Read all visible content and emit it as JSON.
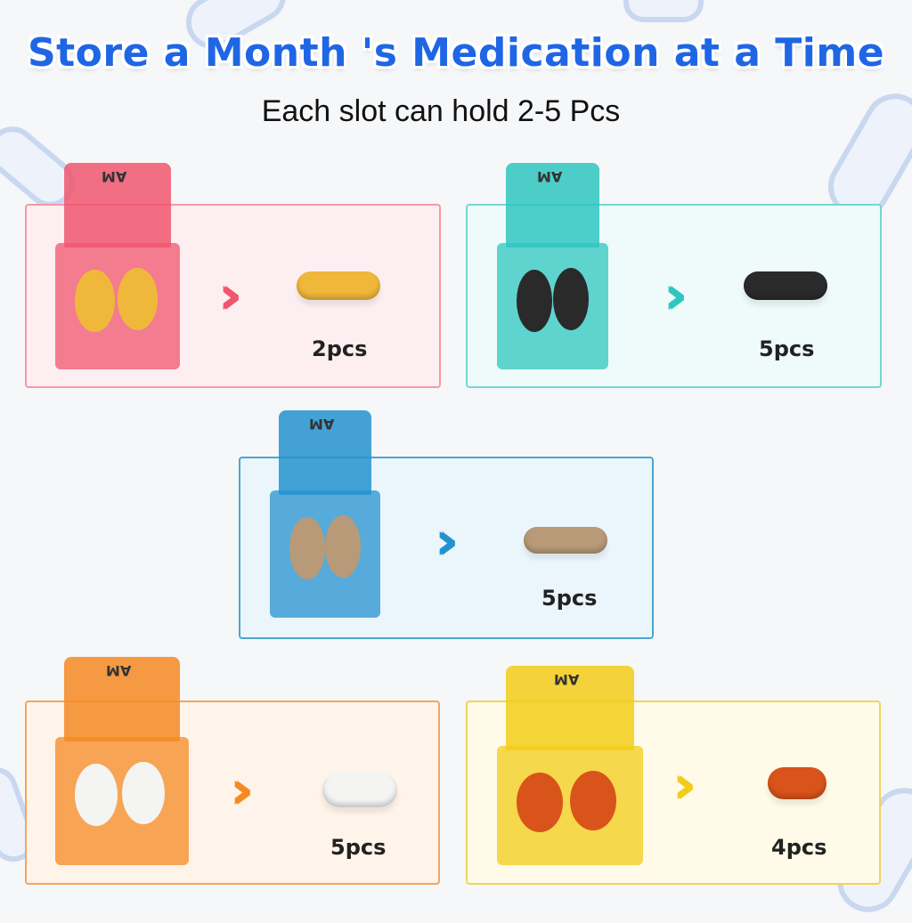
{
  "title": "Store a Month 's Medication at a Time",
  "subtitle": "Each slot can hold 2-5 Pcs",
  "slots": [
    {
      "color": "pink",
      "accent": "#f0566e",
      "border": "#f29aa6",
      "bg": "#fdeff1",
      "lid_label": "AM",
      "pill_type": "softgel",
      "pill_color": "#f0b83a",
      "count": "2pcs"
    },
    {
      "color": "teal",
      "accent": "#2fc6bf",
      "border": "#72d8d3",
      "bg": "#effafa",
      "lid_label": "AM",
      "pill_type": "capsule",
      "pill_color": "#2a2a2a",
      "count": "5pcs"
    },
    {
      "color": "blue",
      "accent": "#2592cf",
      "border": "#4aa6cf",
      "bg": "#eaf6fb",
      "lid_label": "AM",
      "pill_type": "capsule",
      "pill_color": "#b89a78",
      "count": "5pcs"
    },
    {
      "color": "orange",
      "accent": "#f58a23",
      "border": "#f3a560",
      "bg": "#fff4ea",
      "lid_label": "AM",
      "pill_type": "tablet",
      "pill_color": "#f4f4f2",
      "count": "5pcs"
    },
    {
      "color": "yellow",
      "accent": "#f2cc18",
      "border": "#eed45f",
      "bg": "#fffbe8",
      "lid_label": "AM",
      "pill_type": "softgel",
      "pill_color": "#d9541a",
      "count": "4pcs"
    }
  ]
}
